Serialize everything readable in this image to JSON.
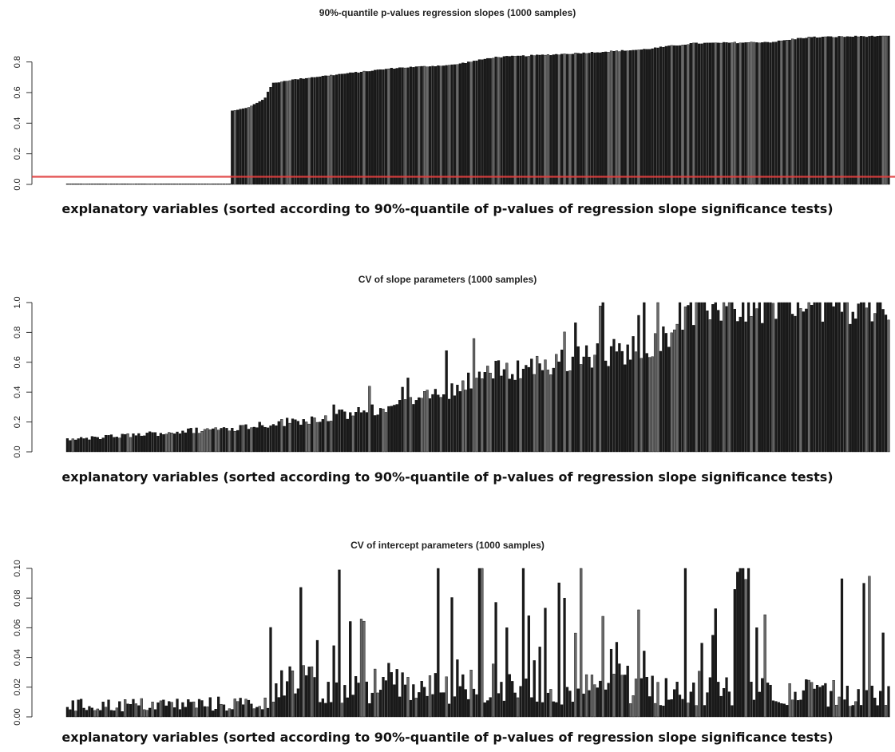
{
  "chart_data": [
    {
      "type": "bar",
      "title": "90%-quantile p-values regression slopes (1000 samples)",
      "xlabel": "explanatory variables (sorted according to 90%-quantile of p-values of regression slope significance tests)",
      "ylabel": "",
      "ylim": [
        0,
        0.97
      ],
      "yticks": [
        "0.0",
        "0.2",
        "0.4",
        "0.6",
        "0.8"
      ],
      "yticks_values": [
        0,
        0.2,
        0.4,
        0.6,
        0.8
      ],
      "reference_line": {
        "y": 0.05,
        "color": "#e04040"
      },
      "n_bars": 300,
      "profile": [
        [
          0,
          0.0
        ],
        [
          60,
          0.0
        ],
        [
          100,
          0.0
        ],
        [
          120,
          0.005
        ],
        [
          140,
          0.01
        ],
        [
          150,
          0.02
        ],
        [
          160,
          0.05
        ],
        [
          170,
          0.09
        ],
        [
          180,
          0.12
        ],
        [
          185,
          0.3
        ],
        [
          190,
          0.45
        ],
        [
          200,
          0.48
        ],
        [
          220,
          0.5
        ],
        [
          240,
          0.56
        ],
        [
          250,
          0.66
        ],
        [
          270,
          0.68
        ],
        [
          300,
          0.7
        ],
        [
          400,
          0.76
        ],
        [
          470,
          0.78
        ],
        [
          520,
          0.83
        ],
        [
          600,
          0.85
        ],
        [
          700,
          0.88
        ],
        [
          760,
          0.92
        ],
        [
          860,
          0.93
        ],
        [
          900,
          0.96
        ],
        [
          1000,
          0.97
        ]
      ],
      "profile_note": "x in percent-of-axis is not used; profile x is bar index scaled to 1000",
      "bar_color": "#1a1a1a"
    },
    {
      "type": "bar",
      "title": "CV of slope parameters (1000 samples)",
      "xlabel": "explanatory variables (sorted according to 90%-quantile of p-values of regression slope significance tests)",
      "ylabel": "",
      "ylim": [
        0,
        1.0
      ],
      "yticks": [
        "0.0",
        "0.2",
        "0.4",
        "0.6",
        "0.8",
        "1.0"
      ],
      "yticks_values": [
        0,
        0.2,
        0.4,
        0.6,
        0.8,
        1.0
      ],
      "n_bars": 300,
      "profile": [
        [
          0,
          0.08
        ],
        [
          100,
          0.12
        ],
        [
          200,
          0.16
        ],
        [
          300,
          0.22
        ],
        [
          400,
          0.3
        ],
        [
          470,
          0.42
        ],
        [
          500,
          0.52
        ],
        [
          600,
          0.6
        ],
        [
          700,
          0.7
        ],
        [
          740,
          0.85
        ],
        [
          780,
          1.0
        ],
        [
          1000,
          1.0
        ]
      ],
      "bar_color": "#1a1a1a"
    },
    {
      "type": "bar",
      "title": "CV of intercept parameters (1000 samples)",
      "xlabel": "explanatory variables (sorted according to 90%-quantile of p-values of regression slope significance tests)",
      "ylabel": "",
      "ylim": [
        0,
        0.1
      ],
      "yticks": [
        "0.00",
        "0.02",
        "0.04",
        "0.06",
        "0.08",
        "0.10"
      ],
      "yticks_values": [
        0,
        0.02,
        0.04,
        0.06,
        0.08,
        0.1
      ],
      "n_bars": 300,
      "baseline_profile": [
        [
          0,
          0.01
        ],
        [
          240,
          0.012
        ],
        [
          250,
          0.03
        ],
        [
          1000,
          0.02
        ]
      ],
      "bar_color": "#1a1a1a"
    }
  ]
}
